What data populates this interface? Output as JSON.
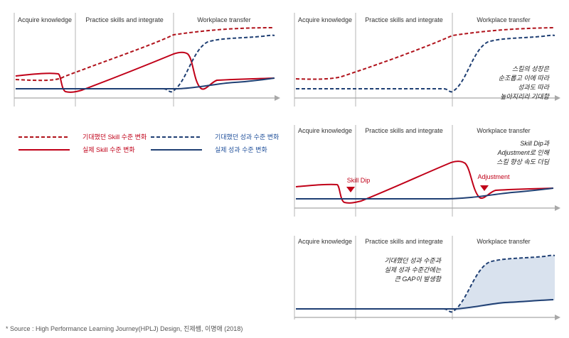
{
  "colors": {
    "expected_skill": "#b0121b",
    "actual_skill": "#c00018",
    "expected_performance": "#1f3f73",
    "actual_performance": "#1f3f73",
    "gap_fill": "#d9e2ee",
    "divider": "#b5b5b5",
    "axis": "#a8a8a8"
  },
  "phases": [
    "Acquire knowledge",
    "Practice skills and integrate",
    "Workplace transfer"
  ],
  "legend": {
    "expected_skill": "기대했던 Skill 수준 변화",
    "actual_skill": "실제 Skill 수준 변화",
    "expected_performance": "기대했던 성과 수준 변화",
    "actual_performance": "실제 성과 수준 변화"
  },
  "panel_top_right": {
    "note": [
      "스킬의 성장은",
      "순조롭고 이에 따라",
      "성과도 따라",
      "높아지리라 기대함"
    ]
  },
  "panel_mid_right": {
    "note": [
      "Skill Dip과",
      "Adjustment로 인해",
      "스킬 향상 속도 더딤"
    ],
    "markers": [
      "Skill Dip",
      "Adjustment"
    ]
  },
  "panel_bottom_right": {
    "note": [
      "기대했던 성과 수준과",
      "실제 성과 수준간에는",
      "큰 GAP이 발생함"
    ]
  },
  "source": "* Source : High Performance Learning Journey(HPLJ) Design, 진제쌤, 이명애 (2018)"
}
